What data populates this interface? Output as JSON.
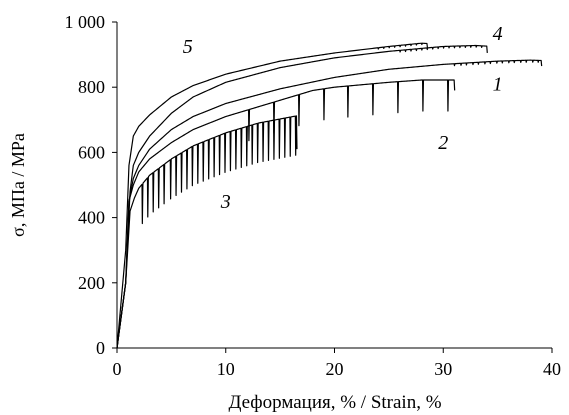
{
  "chart_data": {
    "type": "line",
    "xlabel": "Деформация, % / Strain,  %",
    "ylabel": "σ, МПа  /  MPa",
    "xlim": [
      0,
      40
    ],
    "ylim": [
      0,
      1000
    ],
    "x_ticks": [
      0,
      10,
      20,
      30,
      40
    ],
    "x_tick_labels": [
      "0",
      "10",
      "20",
      "30",
      "40"
    ],
    "y_ticks": [
      0,
      200,
      400,
      600,
      800,
      1000
    ],
    "y_tick_labels": [
      "0",
      "200",
      "400",
      "600",
      "800",
      "1 000"
    ],
    "grid": false,
    "legend": "none",
    "line_color": "#000000",
    "series": [
      {
        "label": "1",
        "label_at": [
          35,
          790
        ],
        "points": [
          [
            0,
            0
          ],
          [
            0.8,
            200
          ],
          [
            1.1,
            450
          ],
          [
            1.5,
            520
          ],
          [
            2,
            560
          ],
          [
            3,
            610
          ],
          [
            5,
            670
          ],
          [
            7,
            710
          ],
          [
            10,
            750
          ],
          [
            15,
            795
          ],
          [
            20,
            830
          ],
          [
            25,
            855
          ],
          [
            30,
            870
          ],
          [
            35,
            880
          ],
          [
            38,
            883
          ],
          [
            39,
            882
          ]
        ],
        "serrations": {
          "from": 31,
          "to": 39,
          "step": 0.55,
          "depth": 6
        },
        "drop_end": 865
      },
      {
        "label": "2",
        "label_at": [
          30,
          610
        ],
        "points": [
          [
            0,
            0
          ],
          [
            0.8,
            200
          ],
          [
            1.1,
            450
          ],
          [
            1.5,
            500
          ],
          [
            2,
            540
          ],
          [
            3,
            580
          ],
          [
            5,
            630
          ],
          [
            7,
            670
          ],
          [
            10,
            710
          ],
          [
            12,
            730
          ],
          [
            15,
            760
          ],
          [
            18,
            790
          ],
          [
            20,
            800
          ],
          [
            25,
            815
          ],
          [
            28,
            822
          ],
          [
            31,
            822
          ]
        ],
        "serrations": {
          "from": 12,
          "to": 31,
          "step": 2.3,
          "depth": 95
        },
        "drop_end": 790
      },
      {
        "label": "3",
        "label_at": [
          10,
          430
        ],
        "points": [
          [
            0,
            0
          ],
          [
            0.8,
            200
          ],
          [
            1.2,
            420
          ],
          [
            1.6,
            460
          ],
          [
            2,
            490
          ],
          [
            3,
            530
          ],
          [
            5,
            580
          ],
          [
            7,
            620
          ],
          [
            10,
            660
          ],
          [
            13,
            690
          ],
          [
            16.5,
            712
          ]
        ],
        "serrations": {
          "from": 2.3,
          "to": 16.5,
          "step": 0.5,
          "depth": 120
        },
        "drop_end": 610
      },
      {
        "label": "4",
        "label_at": [
          35,
          945
        ],
        "points": [
          [
            0,
            0
          ],
          [
            0.8,
            200
          ],
          [
            1.2,
            480
          ],
          [
            1.5,
            560
          ],
          [
            2,
            600
          ],
          [
            3,
            650
          ],
          [
            5,
            720
          ],
          [
            7,
            770
          ],
          [
            10,
            815
          ],
          [
            15,
            860
          ],
          [
            20,
            890
          ],
          [
            25,
            910
          ],
          [
            30,
            925
          ],
          [
            33,
            928
          ],
          [
            34,
            926
          ]
        ],
        "serrations": {
          "from": 26,
          "to": 34,
          "step": 0.5,
          "depth": 5
        },
        "drop_end": 905
      },
      {
        "label": "5",
        "label_at": [
          6.5,
          905
        ],
        "points": [
          [
            0,
            0
          ],
          [
            0.8,
            300
          ],
          [
            1.1,
            560
          ],
          [
            1.5,
            650
          ],
          [
            2,
            680
          ],
          [
            3,
            715
          ],
          [
            5,
            770
          ],
          [
            7,
            805
          ],
          [
            10,
            840
          ],
          [
            15,
            880
          ],
          [
            20,
            905
          ],
          [
            25,
            925
          ],
          [
            28,
            935
          ],
          [
            28.5,
            934
          ]
        ],
        "serrations": {
          "from": 24,
          "to": 28.5,
          "step": 0.5,
          "depth": 4
        },
        "drop_end": 920
      }
    ]
  }
}
